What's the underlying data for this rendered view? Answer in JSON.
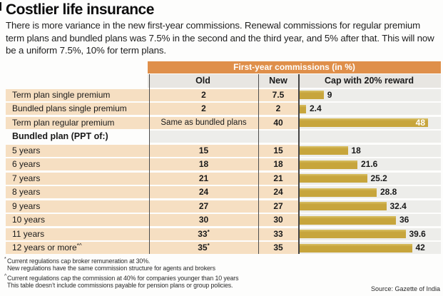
{
  "title": "Costlier life insurance",
  "subtitle": "There is more variance in the new first-year commissions. Renewal commissions for regular premium term plans and bundled plans was 7.5% in the second and the third year, and 5% after that. This will now be a uniform 7.5%, 10% for term plans.",
  "table": {
    "banner": "First-year commissions (in %)",
    "columns": {
      "old": "Old",
      "new": "New",
      "cap": "Cap with 20% reward"
    },
    "cap_scale_max": 48,
    "rows": [
      {
        "label": "Term plan single premium",
        "old": "2",
        "new": "7.5",
        "cap": 9,
        "cap_label": "9"
      },
      {
        "label": "Bundled plans single premium",
        "old": "2",
        "new": "2",
        "cap": 2.4,
        "cap_label": "2.4"
      },
      {
        "label": "Term plan regular premium",
        "old": "Same as bundled plans",
        "old_plain": true,
        "new": "40",
        "cap": 48,
        "cap_label": "48",
        "label_inside": true
      },
      {
        "label": "Bundled plan (PPT of:)",
        "section": true
      },
      {
        "label": "5 years",
        "old": "15",
        "new": "15",
        "cap": 18,
        "cap_label": "18"
      },
      {
        "label": "6 years",
        "old": "18",
        "new": "18",
        "cap": 21.6,
        "cap_label": "21.6"
      },
      {
        "label": "7 years",
        "old": "21",
        "new": "21",
        "cap": 25.2,
        "cap_label": "25.2"
      },
      {
        "label": "8 years",
        "old": "24",
        "new": "24",
        "cap": 28.8,
        "cap_label": "28.8"
      },
      {
        "label": "9 years",
        "old": "27",
        "new": "27",
        "cap": 32.4,
        "cap_label": "32.4"
      },
      {
        "label": "10 years",
        "old": "30",
        "new": "30",
        "cap": 36,
        "cap_label": "36"
      },
      {
        "label": "11 years",
        "old": "33",
        "old_sup": "*",
        "new": "33",
        "cap": 39.6,
        "cap_label": "39.6"
      },
      {
        "label": "12 years or more",
        "label_sup": "*^",
        "old": "35",
        "old_sup": "*",
        "new": "35",
        "cap": 42,
        "cap_label": "42"
      }
    ]
  },
  "footnotes": [
    {
      "marker": "*",
      "text": "Current regulations cap broker remuneration at 30%.",
      "gap_before": false
    },
    {
      "marker": "",
      "text": "New regulations have the same commission structure for agents and brokers",
      "gap_before": false
    },
    {
      "marker": "^",
      "text": "Current regulations cap the commission at 40% for companies younger than 10 years",
      "gap_before": true
    },
    {
      "marker": "",
      "text": "This table doesn’t include commissions payable for pension plans or group policies.",
      "gap_before": false
    }
  ],
  "source": "Source: Gazette of India",
  "colors": {
    "banner_orange": "#df8f4a",
    "row_peach": "#f6dfc2",
    "header_gray": "#e8e6e2",
    "band_gray": "#ededea",
    "bar_gold": "#c7a53c",
    "divider": "#4d4d4d"
  },
  "chart_data": {
    "type": "bar",
    "orientation": "horizontal",
    "title": "Costlier life insurance",
    "banner": "First-year commissions (in %)",
    "section_header": "Bundled plan (PPT of:)",
    "categories": [
      "Term plan single premium",
      "Bundled plans single premium",
      "Term plan regular premium",
      "5 years",
      "6 years",
      "7 years",
      "8 years",
      "9 years",
      "10 years",
      "11 years",
      "12 years or more"
    ],
    "series": [
      {
        "name": "Old",
        "values": [
          "2",
          "2",
          "Same as bundled plans",
          "15",
          "18",
          "21",
          "24",
          "27",
          "30",
          "33",
          "35"
        ]
      },
      {
        "name": "New",
        "values": [
          7.5,
          2,
          40,
          15,
          18,
          21,
          24,
          27,
          30,
          33,
          35
        ]
      },
      {
        "name": "Cap with 20% reward",
        "values": [
          9,
          2.4,
          48,
          18,
          21.6,
          25.2,
          28.8,
          32.4,
          36,
          39.6,
          42
        ]
      }
    ],
    "xlim": [
      0,
      48
    ],
    "grid": false,
    "legend_position": "none",
    "bar_color": "#c7a53c"
  }
}
